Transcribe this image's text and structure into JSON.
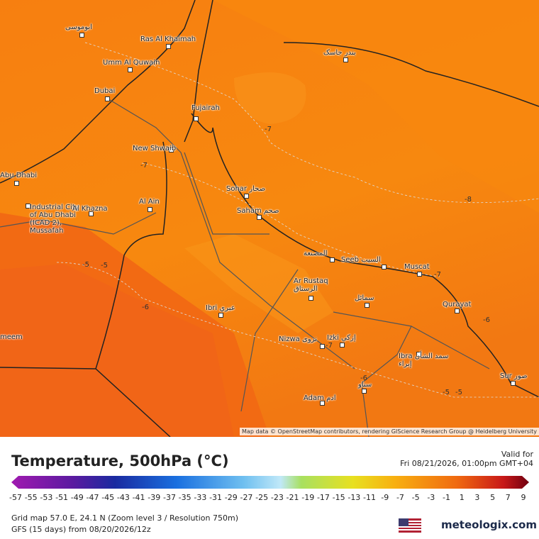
{
  "map": {
    "cities": [
      "ابوموسى",
      "Ras Al Khaimah",
      "بندر جاسک",
      "Umm Al Quwain",
      "Dubai",
      "Fujairah",
      "New Shwaib",
      "Abu Dhabi",
      "Industrial City of Abu Dhabi (ICAD 2), Mussafah",
      "Al Khazna",
      "Al Ain",
      "Sohar صحار",
      "Saham صحم",
      "المصنعة",
      "Seeb السيب",
      "Muscat",
      "Ar Rustaq\nالرستاق",
      "سمائل",
      "Qurayat",
      "Ibri عبري",
      "Nizwa نزوى",
      "Izki إزكي",
      "Ibra سمد الشأن\nإبراء",
      "سناو",
      "Adam ادم",
      "Sur صور",
      "meem"
    ],
    "contour_labels": [
      "-7",
      "-7",
      "-8",
      "-5",
      "-5",
      "-6",
      "-7",
      "-7",
      "-6",
      "-6",
      "-5",
      "-5"
    ],
    "attribution": "Map data © OpenStreetMap contributors, rendering GIScience Research Group @ Heidelberg University"
  },
  "legend": {
    "title": "Temperature, 500hPa (°C)",
    "valid_label": "Valid for",
    "valid_time": "Fri 08/21/2026, 01:00pm GMT+04",
    "scale_ticks": [
      -57,
      -55,
      -53,
      -51,
      -49,
      -47,
      -45,
      -43,
      -41,
      -39,
      -37,
      -35,
      -33,
      -31,
      -29,
      -27,
      -25,
      -23,
      -21,
      -19,
      -17,
      -15,
      -13,
      -11,
      -9,
      -7,
      -5,
      -3,
      -1,
      1,
      3,
      5,
      7,
      9
    ]
  },
  "footer": {
    "grid": "Grid map 57.0 E, 24.1 N (Zoom level 3 / Resolution 750m)",
    "model": "GFS (15 days) from 08/20/2026/12z",
    "brand": "meteologix.com"
  }
}
